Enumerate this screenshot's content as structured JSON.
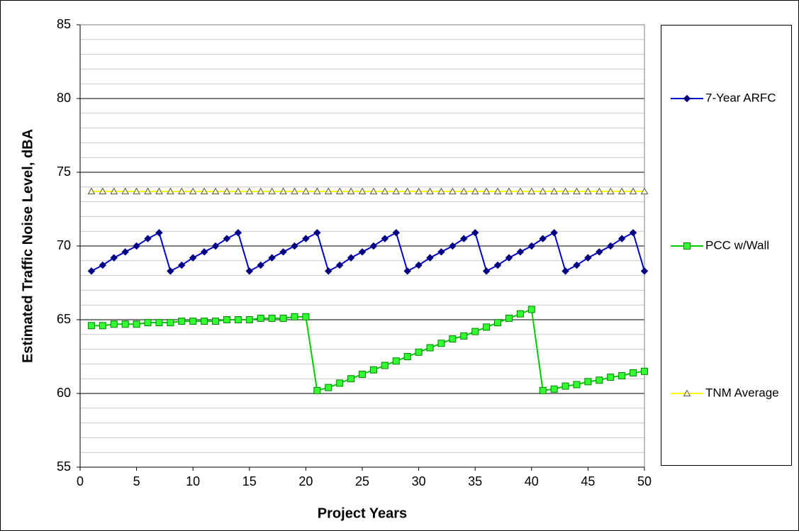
{
  "chart_data": {
    "type": "line",
    "xlabel": "Project Years",
    "ylabel": "Estimated Traffic Noise Level, dBA",
    "x": [
      1,
      2,
      3,
      4,
      5,
      6,
      7,
      8,
      9,
      10,
      11,
      12,
      13,
      14,
      15,
      16,
      17,
      18,
      19,
      20,
      21,
      22,
      23,
      24,
      25,
      26,
      27,
      28,
      29,
      30,
      31,
      32,
      33,
      34,
      35,
      36,
      37,
      38,
      39,
      40,
      41,
      42,
      43,
      44,
      45,
      46,
      47,
      48,
      49,
      50
    ],
    "series": [
      {
        "name": "7-Year ARFC",
        "color": "#0000cc",
        "marker_color": "#000080",
        "marker": "diamond",
        "values": [
          68.3,
          68.7,
          69.2,
          69.6,
          70.0,
          70.5,
          70.9,
          68.3,
          68.7,
          69.2,
          69.6,
          70.0,
          70.5,
          70.9,
          68.3,
          68.7,
          69.2,
          69.6,
          70.0,
          70.5,
          70.9,
          68.3,
          68.7,
          69.2,
          69.6,
          70.0,
          70.5,
          70.9,
          68.3,
          68.7,
          69.2,
          69.6,
          70.0,
          70.5,
          70.9,
          68.3,
          68.7,
          69.2,
          69.6,
          70.0,
          70.5,
          70.9,
          68.3,
          68.7,
          69.2,
          69.6,
          70.0,
          70.5,
          70.9,
          68.3
        ]
      },
      {
        "name": "PCC w/Wall",
        "color": "#00cc00",
        "marker_color": "#33ff33",
        "marker": "square",
        "values": [
          64.6,
          64.6,
          64.7,
          64.7,
          64.7,
          64.8,
          64.8,
          64.8,
          64.9,
          64.9,
          64.9,
          64.9,
          65.0,
          65.0,
          65.0,
          65.1,
          65.1,
          65.1,
          65.2,
          65.2,
          60.2,
          60.4,
          60.7,
          61.0,
          61.3,
          61.6,
          61.9,
          62.2,
          62.5,
          62.8,
          63.1,
          63.4,
          63.7,
          63.9,
          64.2,
          64.5,
          64.8,
          65.1,
          65.4,
          65.7,
          60.2,
          60.3,
          60.5,
          60.6,
          60.8,
          60.9,
          61.1,
          61.2,
          61.4,
          61.5
        ]
      },
      {
        "name": "TNM Average",
        "color": "#ffff00",
        "marker_color": "#ffffcc",
        "marker": "triangle",
        "values": [
          73.7,
          73.7,
          73.7,
          73.7,
          73.7,
          73.7,
          73.7,
          73.7,
          73.7,
          73.7,
          73.7,
          73.7,
          73.7,
          73.7,
          73.7,
          73.7,
          73.7,
          73.7,
          73.7,
          73.7,
          73.7,
          73.7,
          73.7,
          73.7,
          73.7,
          73.7,
          73.7,
          73.7,
          73.7,
          73.7,
          73.7,
          73.7,
          73.7,
          73.7,
          73.7,
          73.7,
          73.7,
          73.7,
          73.7,
          73.7,
          73.7,
          73.7,
          73.7,
          73.7,
          73.7,
          73.7,
          73.7,
          73.7,
          73.7,
          73.7
        ]
      }
    ],
    "xlim": [
      0,
      50
    ],
    "xticks": [
      0,
      5,
      10,
      15,
      20,
      25,
      30,
      35,
      40,
      45,
      50
    ],
    "ylim": [
      55,
      85
    ],
    "yticks": [
      55,
      60,
      65,
      70,
      75,
      80,
      85
    ],
    "grid": true,
    "legend": "right"
  }
}
